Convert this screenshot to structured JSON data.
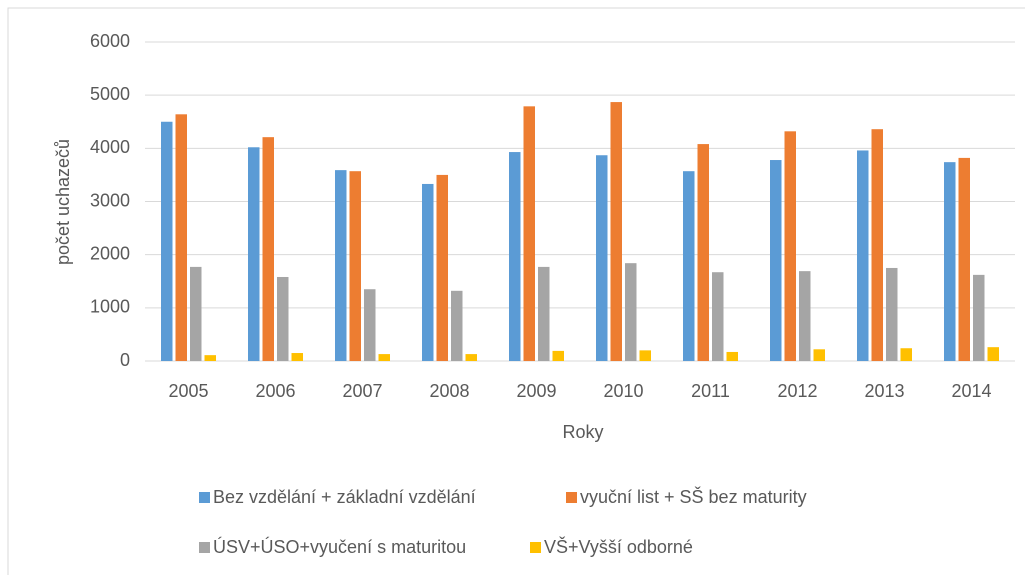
{
  "chart_data": {
    "type": "bar",
    "x_label": "Roky",
    "y_label": "počet uchazečů",
    "categories": [
      "2005",
      "2006",
      "2007",
      "2008",
      "2009",
      "2010",
      "2011",
      "2012",
      "2013",
      "2014"
    ],
    "series": [
      {
        "name": "Bez vzdělání + základní vzdělání",
        "color": "#5b9bd5",
        "values": [
          4500,
          4020,
          3590,
          3330,
          3930,
          3870,
          3570,
          3780,
          3960,
          3740
        ]
      },
      {
        "name": "vyuční list + SŠ bez maturity",
        "color": "#ed7d31",
        "values": [
          4640,
          4210,
          3570,
          3500,
          4790,
          4870,
          4080,
          4320,
          4360,
          3820
        ]
      },
      {
        "name": "ÚSV+ÚSO+vyučení s maturitou",
        "color": "#a5a5a5",
        "values": [
          1770,
          1580,
          1350,
          1320,
          1770,
          1840,
          1670,
          1690,
          1750,
          1620
        ]
      },
      {
        "name": "VŠ+Vyšší odborné",
        "color": "#ffc000",
        "values": [
          110,
          150,
          130,
          130,
          190,
          200,
          170,
          220,
          240,
          260
        ]
      }
    ],
    "ylim": [
      0,
      6000
    ],
    "yticks": [
      0,
      1000,
      2000,
      3000,
      4000,
      5000,
      6000
    ],
    "grid": true
  }
}
